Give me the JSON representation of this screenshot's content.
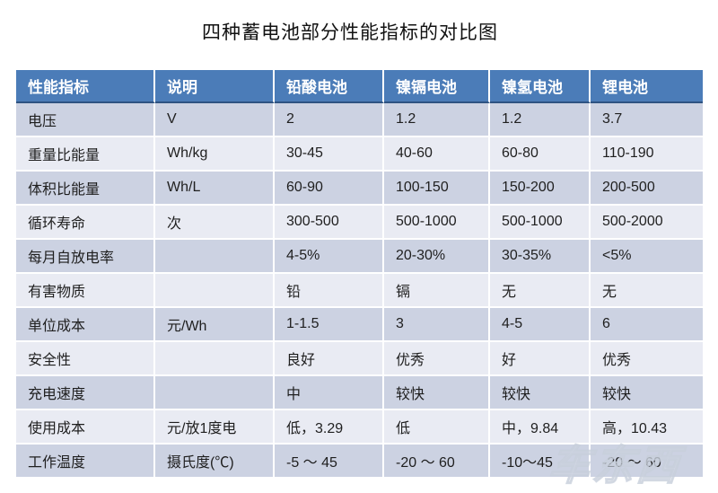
{
  "title": "四种蓄电池部分性能指标的对比图",
  "table": {
    "columns": [
      "性能指标",
      "说明",
      "铅酸电池",
      "镍镉电池",
      "镍氢电池",
      "锂电池"
    ],
    "rows": [
      [
        "电压",
        "V",
        "2",
        "1.2",
        "1.2",
        "3.7"
      ],
      [
        "重量比能量",
        "Wh/kg",
        "30-45",
        "40-60",
        "60-80",
        "110-190"
      ],
      [
        "体积比能量",
        "Wh/L",
        "60-90",
        "100-150",
        "150-200",
        "200-500"
      ],
      [
        "循环寿命",
        "次",
        "300-500",
        "500-1000",
        "500-1000",
        "500-2000"
      ],
      [
        "每月自放电率",
        "",
        "4-5%",
        "20-30%",
        "30-35%",
        "<5%"
      ],
      [
        "有害物质",
        "",
        "铅",
        "镉",
        "无",
        "无"
      ],
      [
        "单位成本",
        "元/Wh",
        "1-1.5",
        "3",
        "4-5",
        "6"
      ],
      [
        "安全性",
        "",
        "良好",
        "优秀",
        "好",
        "优秀"
      ],
      [
        "充电速度",
        "",
        "中",
        "较快",
        "较快",
        "较快"
      ],
      [
        "使用成本",
        "元/放1度电",
        "低，3.29",
        "低",
        "中，9.84",
        "高，10.43"
      ],
      [
        "工作温度",
        "摄氏度(℃)",
        "-5 ～ 45",
        "-20 ～ 60",
        "-10～45",
        "-20 ～ 60"
      ]
    ],
    "colors": {
      "header_bg": "#4b7cb8",
      "header_text": "#ffffff",
      "header_rule": "#2e5382",
      "row_band_dark": "#ccd2e2",
      "row_band_light": "#e9ebf3",
      "divider": "#ffffff",
      "cell_text": "#1f1f1f"
    }
  },
  "watermark": {
    "text": "车东西"
  }
}
